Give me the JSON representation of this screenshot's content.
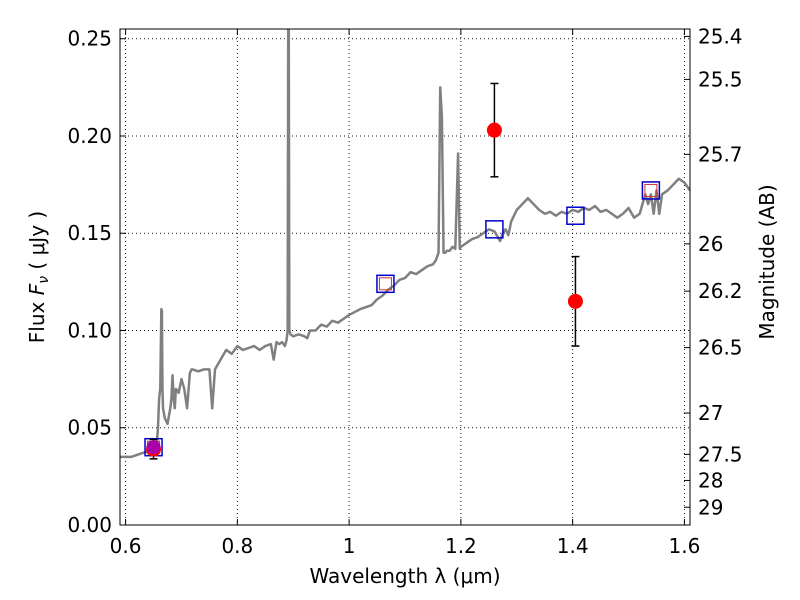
{
  "chart_data": {
    "type": "line",
    "xlabel": "Wavelength  λ (μm)",
    "ylabel": "Flux  F_ν  ( μJy )",
    "y2label": "Magnitude (AB)",
    "xlim": [
      0.59,
      1.61
    ],
    "ylim": [
      0.0,
      0.255
    ],
    "grid": true,
    "x_ticks": [
      {
        "value": 0.6,
        "label": "0.6"
      },
      {
        "value": 0.8,
        "label": "0.8"
      },
      {
        "value": 1.0,
        "label": "1"
      },
      {
        "value": 1.2,
        "label": "1.2"
      },
      {
        "value": 1.4,
        "label": "1.4"
      },
      {
        "value": 1.6,
        "label": "1.6"
      }
    ],
    "y_ticks": [
      {
        "value": 0.0,
        "label": "0.00"
      },
      {
        "value": 0.05,
        "label": "0.05"
      },
      {
        "value": 0.1,
        "label": "0.10"
      },
      {
        "value": 0.15,
        "label": "0.15"
      },
      {
        "value": 0.2,
        "label": "0.20"
      },
      {
        "value": 0.25,
        "label": "0.25"
      }
    ],
    "y2_ticks": [
      {
        "mag": 25.4,
        "label": "25.4"
      },
      {
        "mag": 25.5,
        "label": "25.5"
      },
      {
        "mag": 25.7,
        "label": "25.7"
      },
      {
        "mag": 26.0,
        "label": "26"
      },
      {
        "mag": 26.2,
        "label": "26.2"
      },
      {
        "mag": 26.5,
        "label": "26.5"
      },
      {
        "mag": 27.0,
        "label": "27"
      },
      {
        "mag": 27.5,
        "label": "27.5"
      },
      {
        "mag": 28.0,
        "label": "28"
      },
      {
        "mag": 29.0,
        "label": "29"
      }
    ],
    "series": [
      {
        "style": "line",
        "color": "#808080",
        "x": [
          0.59,
          0.61,
          0.63,
          0.645,
          0.655,
          0.658,
          0.66,
          0.662,
          0.663,
          0.664,
          0.665,
          0.666,
          0.667,
          0.67,
          0.675,
          0.68,
          0.682,
          0.684,
          0.686,
          0.688,
          0.69,
          0.695,
          0.7,
          0.705,
          0.71,
          0.715,
          0.718,
          0.72,
          0.73,
          0.74,
          0.75,
          0.755,
          0.76,
          0.77,
          0.78,
          0.79,
          0.8,
          0.81,
          0.82,
          0.83,
          0.84,
          0.85,
          0.86,
          0.865,
          0.87,
          0.875,
          0.88,
          0.885,
          0.888,
          0.89,
          0.891,
          0.892,
          0.893,
          0.895,
          0.9,
          0.91,
          0.92,
          0.925,
          0.93,
          0.94,
          0.95,
          0.96,
          0.97,
          0.98,
          1.0,
          1.02,
          1.04,
          1.05,
          1.06,
          1.07,
          1.08,
          1.09,
          1.1,
          1.11,
          1.12,
          1.13,
          1.14,
          1.15,
          1.155,
          1.16,
          1.163,
          1.166,
          1.169,
          1.172,
          1.175,
          1.18,
          1.185,
          1.19,
          1.195,
          1.198,
          1.2,
          1.205,
          1.21,
          1.22,
          1.23,
          1.24,
          1.25,
          1.26,
          1.27,
          1.275,
          1.28,
          1.285,
          1.29,
          1.3,
          1.31,
          1.32,
          1.33,
          1.34,
          1.35,
          1.36,
          1.37,
          1.38,
          1.39,
          1.4,
          1.41,
          1.42,
          1.43,
          1.44,
          1.45,
          1.46,
          1.47,
          1.48,
          1.49,
          1.5,
          1.51,
          1.52,
          1.53,
          1.535,
          1.54,
          1.545,
          1.55,
          1.555,
          1.56,
          1.57,
          1.58,
          1.59,
          1.6,
          1.61
        ],
        "y": [
          0.035,
          0.035,
          0.037,
          0.038,
          0.039,
          0.05,
          0.065,
          0.07,
          0.09,
          0.111,
          0.11,
          0.07,
          0.06,
          0.055,
          0.052,
          0.06,
          0.065,
          0.077,
          0.065,
          0.06,
          0.07,
          0.068,
          0.075,
          0.07,
          0.06,
          0.078,
          0.08,
          0.08,
          0.079,
          0.08,
          0.08,
          0.06,
          0.08,
          0.085,
          0.09,
          0.088,
          0.092,
          0.09,
          0.091,
          0.092,
          0.09,
          0.092,
          0.093,
          0.085,
          0.094,
          0.093,
          0.094,
          0.092,
          0.095,
          0.1,
          0.26,
          0.26,
          0.1,
          0.098,
          0.097,
          0.098,
          0.097,
          0.096,
          0.1,
          0.1,
          0.103,
          0.102,
          0.105,
          0.104,
          0.108,
          0.111,
          0.113,
          0.116,
          0.118,
          0.121,
          0.123,
          0.126,
          0.127,
          0.13,
          0.129,
          0.131,
          0.133,
          0.134,
          0.136,
          0.14,
          0.225,
          0.21,
          0.14,
          0.14,
          0.141,
          0.141,
          0.143,
          0.142,
          0.191,
          0.142,
          0.143,
          0.144,
          0.145,
          0.147,
          0.148,
          0.15,
          0.152,
          0.151,
          0.146,
          0.15,
          0.152,
          0.149,
          0.156,
          0.162,
          0.165,
          0.168,
          0.165,
          0.162,
          0.16,
          0.161,
          0.159,
          0.161,
          0.16,
          0.162,
          0.161,
          0.163,
          0.162,
          0.164,
          0.161,
          0.162,
          0.16,
          0.158,
          0.16,
          0.163,
          0.158,
          0.16,
          0.17,
          0.165,
          0.17,
          0.16,
          0.172,
          0.16,
          0.17,
          0.172,
          0.175,
          0.178,
          0.176,
          0.172
        ]
      },
      {
        "style": "markers-square-open",
        "color": "#0000cc",
        "x": [
          0.65,
          1.065,
          1.26,
          1.405,
          1.54
        ],
        "y": [
          0.04,
          0.124,
          0.152,
          0.159,
          0.172
        ]
      },
      {
        "style": "markers-square-open-small",
        "color": "#cc3333",
        "x": [
          0.65,
          1.065,
          1.54
        ],
        "y": [
          0.04,
          0.124,
          0.172
        ]
      },
      {
        "style": "markers-circle-errorbar",
        "color": "#ff0000",
        "x": [
          0.65,
          1.26,
          1.405
        ],
        "y": [
          0.039,
          0.203,
          0.115
        ],
        "yerr": [
          0.005,
          0.024,
          0.023
        ]
      },
      {
        "style": "markers-circle",
        "color": "#aa00aa",
        "x": [
          0.65
        ],
        "y": [
          0.04
        ]
      }
    ]
  }
}
